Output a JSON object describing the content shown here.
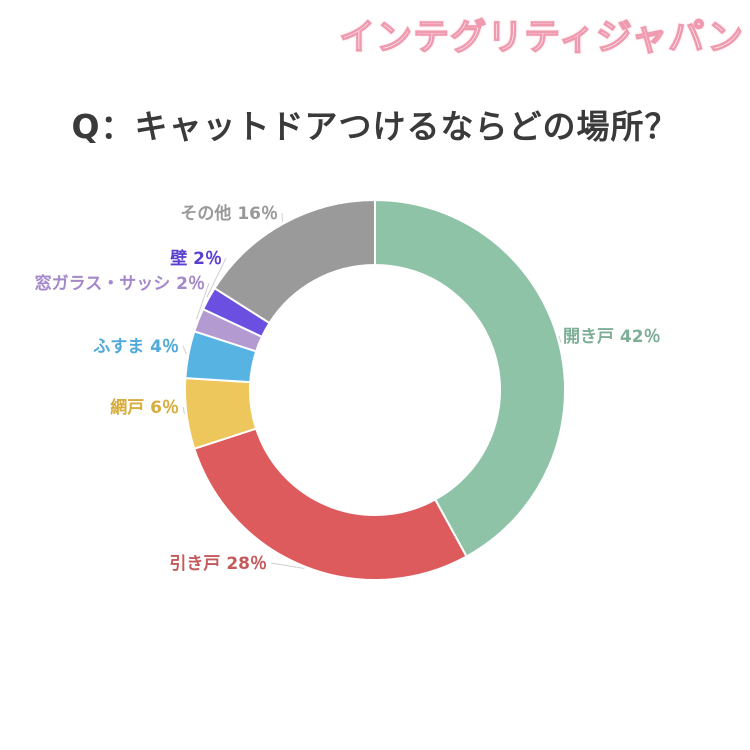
{
  "watermark": "インテグリティジャパン",
  "chart_data": {
    "type": "pie",
    "style": "donut",
    "title": "Q：キャットドアつけるならどの場所？",
    "unit": "%",
    "categories": [
      "開き戸",
      "引き戸",
      "網戸",
      "ふすま",
      "窓ガラス・サッシ",
      "壁",
      "その他"
    ],
    "values": [
      42,
      28,
      6,
      4,
      2,
      2,
      16
    ],
    "labels": [
      "開き戸 42％",
      "引き戸 28％",
      "網戸 6％",
      "ふすま 4％",
      "窓ガラス・サッシ 2％",
      "壁 2％",
      "その他 16％"
    ],
    "colors": [
      "#8fc3a7",
      "#dd5b5d",
      "#edc75c",
      "#57b4e2",
      "#b39ad0",
      "#6b4fe0",
      "#9a9a9a"
    ],
    "label_colors": [
      "#7fae96",
      "#c45a5c",
      "#d7ad3e",
      "#4fa9d9",
      "#a488c9",
      "#5a3fd0",
      "#999999"
    ],
    "legend": "labels beside slices"
  }
}
